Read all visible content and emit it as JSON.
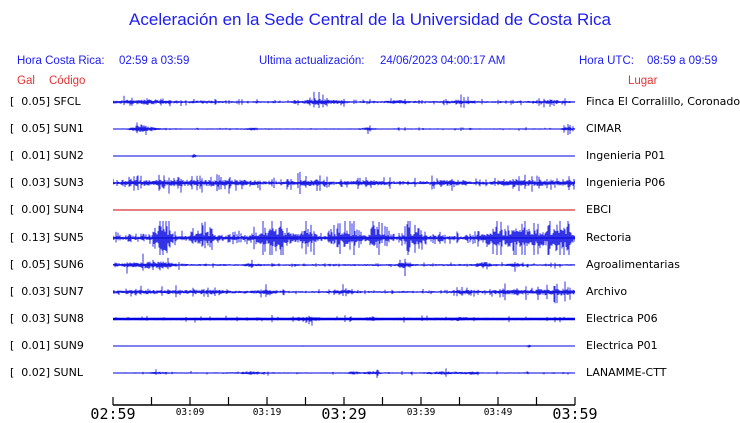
{
  "title": "Aceleración en la Sede Central de la Universidad de Costa Rica",
  "header": {
    "hora_cr_label": "Hora Costa Rica:",
    "hora_cr_value": "02:59 a 03:59",
    "update_label": "Ultima actualización:",
    "update_value": "24/06/2023 04:00:17 AM",
    "hora_utc_label": "Hora UTC:",
    "hora_utc_value": "08:59 a 09:59",
    "col_gal": "Gal",
    "col_codigo": "Código",
    "col_lugar": "Lugar"
  },
  "colors": {
    "text_blue": "#1d1df0",
    "text_red": "#e23333",
    "trace_blue": "#0000e0",
    "trace_red": "#cc0000",
    "axis_black": "#000000"
  },
  "chart_data": {
    "type": "line",
    "title": "Aceleración en la Sede Central de la Universidad de Costa Rica",
    "ylabel": "Gal",
    "x_axis": {
      "start": "02:59",
      "end": "03:59",
      "tick_interval_minutes": 5,
      "tick_count": 13,
      "labels": [
        {
          "text": "02:59",
          "tick": 0,
          "size": "large"
        },
        {
          "text": "03:09",
          "tick": 2,
          "size": "small"
        },
        {
          "text": "03:19",
          "tick": 4,
          "size": "small"
        },
        {
          "text": "03:29",
          "tick": 6,
          "size": "large"
        },
        {
          "text": "03:39",
          "tick": 8,
          "size": "small"
        },
        {
          "text": "03:49",
          "tick": 10,
          "size": "small"
        },
        {
          "text": "03:59",
          "tick": 12,
          "size": "large"
        }
      ]
    },
    "series": [
      {
        "gal": "0.05",
        "code": "SFCL",
        "lugar": "Finca El Corralillo, Coronado",
        "color": "blue",
        "seed": 11,
        "base": 0.7,
        "spike_prob": 0.22,
        "bursts": [
          [
            0.03,
            0.05,
            1.2
          ],
          [
            0.09,
            0.03,
            1.5
          ],
          [
            0.2,
            0.02,
            1.0
          ],
          [
            0.44,
            0.02,
            2.2
          ],
          [
            0.48,
            0.02,
            1.5
          ],
          [
            0.62,
            0.02,
            1.2
          ],
          [
            0.75,
            0.02,
            1.5
          ],
          [
            0.95,
            0.02,
            1.5
          ]
        ]
      },
      {
        "gal": "0.05",
        "code": "SUN1",
        "lugar": "CIMAR",
        "color": "blue",
        "seed": 22,
        "base": 0.5,
        "spike_prob": 0.09,
        "bursts": [
          [
            0.058,
            0.012,
            6.5
          ],
          [
            0.085,
            0.01,
            2.0
          ],
          [
            0.3,
            0.008,
            1.4
          ],
          [
            0.55,
            0.01,
            1.4
          ],
          [
            0.985,
            0.008,
            2.6
          ]
        ]
      },
      {
        "gal": "0.01",
        "code": "SUN2",
        "lugar": "Ingenieria P01",
        "color": "blue",
        "seed": 33,
        "base": 0.16,
        "spike_prob": 0.003,
        "bursts": [
          [
            0.175,
            0.003,
            12
          ]
        ]
      },
      {
        "gal": "0.03",
        "code": "SUN3",
        "lugar": "Ingenieria P06",
        "color": "blue",
        "seed": 44,
        "base": 1.0,
        "spike_prob": 0.35,
        "bursts": [
          [
            0.08,
            0.04,
            1.3
          ],
          [
            0.18,
            0.05,
            1.6
          ],
          [
            0.28,
            0.03,
            1.4
          ],
          [
            0.42,
            0.03,
            1.7
          ],
          [
            0.55,
            0.03,
            1.3
          ],
          [
            0.72,
            0.03,
            1.4
          ],
          [
            0.9,
            0.05,
            1.6
          ],
          [
            0.99,
            0.01,
            1.8
          ]
        ]
      },
      {
        "gal": "0.00",
        "code": "SUN4",
        "lugar": "EBCI",
        "color": "red",
        "seed": 55,
        "base": 0,
        "spike_prob": 0,
        "bursts": []
      },
      {
        "gal": "0.13",
        "code": "SUN5",
        "lugar": "Rectoria",
        "color": "blue",
        "seed": 66,
        "base": 1.5,
        "spike_prob": 0.5,
        "bursts": [
          [
            0.108,
            0.01,
            7
          ],
          [
            0.2,
            0.02,
            2
          ],
          [
            0.35,
            0.025,
            4.5
          ],
          [
            0.42,
            0.015,
            3
          ],
          [
            0.5,
            0.02,
            3
          ],
          [
            0.57,
            0.015,
            2.5
          ],
          [
            0.65,
            0.015,
            3
          ],
          [
            0.82,
            0.02,
            2.5
          ],
          [
            0.9,
            0.04,
            3.5
          ],
          [
            0.97,
            0.02,
            4
          ]
        ]
      },
      {
        "gal": "0.05",
        "code": "SUN6",
        "lugar": "Agroalimentarias",
        "color": "blue",
        "seed": 77,
        "base": 0.75,
        "spike_prob": 0.15,
        "bursts": [
          [
            0.05,
            0.04,
            1.8
          ],
          [
            0.1,
            0.03,
            2.2
          ],
          [
            0.3,
            0.01,
            1.5
          ],
          [
            0.63,
            0.008,
            3.2
          ],
          [
            0.8,
            0.01,
            2.6
          ],
          [
            0.87,
            0.008,
            2.0
          ]
        ]
      },
      {
        "gal": "0.03",
        "code": "SUN7",
        "lugar": "Archivo",
        "color": "blue",
        "seed": 88,
        "base": 0.75,
        "spike_prob": 0.2,
        "bursts": [
          [
            0.07,
            0.05,
            1.5
          ],
          [
            0.2,
            0.04,
            1.8
          ],
          [
            0.33,
            0.02,
            1.6
          ],
          [
            0.5,
            0.015,
            1.6
          ],
          [
            0.76,
            0.015,
            1.8
          ],
          [
            0.88,
            0.05,
            2.0
          ],
          [
            0.97,
            0.03,
            2.2
          ]
        ]
      },
      {
        "gal": "0.03",
        "code": "SUN8",
        "lugar": "Electrica P06",
        "color": "blue",
        "seed": 99,
        "base": 1.0,
        "thickness": 2.6,
        "spike_prob": 0.1,
        "bursts": [
          [
            0.42,
            0.015,
            1.5
          ],
          [
            0.56,
            0.008,
            1.2
          ],
          [
            0.75,
            0.01,
            1.1
          ]
        ]
      },
      {
        "gal": "0.01",
        "code": "SUN9",
        "lugar": "Electrica P01",
        "color": "blue",
        "seed": 111,
        "base": 0.16,
        "spike_prob": 0.002,
        "bursts": [
          [
            0.9,
            0.003,
            8
          ]
        ]
      },
      {
        "gal": "0.02",
        "code": "SUNL",
        "lugar": "LANAMME-CTT",
        "color": "blue",
        "seed": 122,
        "base": 0.5,
        "spike_prob": 0.08,
        "bursts": [
          [
            0.1,
            0.01,
            1.5
          ],
          [
            0.3,
            0.02,
            1.8
          ],
          [
            0.52,
            0.01,
            1.6
          ],
          [
            0.56,
            0.015,
            1.8
          ],
          [
            0.72,
            0.03,
            1.7
          ],
          [
            0.78,
            0.01,
            1.5
          ]
        ]
      }
    ]
  }
}
